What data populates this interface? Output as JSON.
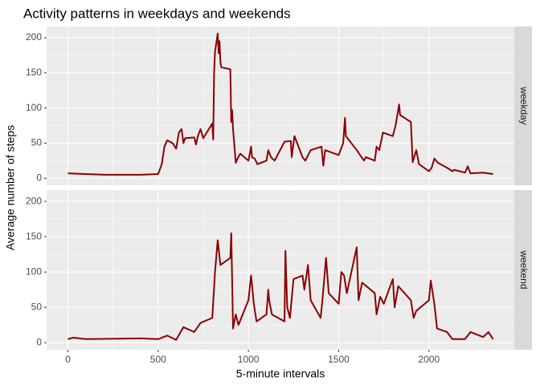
{
  "title": "Activity patterns in weekdays and weekends",
  "xlabel": "5-minute intervals",
  "ylabel": "Average number of steps",
  "chart_data": [
    {
      "type": "line",
      "name": "weekday",
      "color": "#8b0000",
      "x": [
        0,
        100,
        200,
        300,
        400,
        500,
        520,
        535,
        550,
        580,
        600,
        615,
        630,
        640,
        650,
        700,
        710,
        720,
        735,
        750,
        800,
        805,
        810,
        815,
        830,
        835,
        840,
        845,
        850,
        900,
        905,
        910,
        915,
        930,
        940,
        955,
        1000,
        1015,
        1020,
        1035,
        1050,
        1100,
        1110,
        1125,
        1145,
        1200,
        1235,
        1240,
        1255,
        1300,
        1315,
        1345,
        1405,
        1415,
        1425,
        1500,
        1525,
        1535,
        1540,
        1600,
        1640,
        1650,
        1700,
        1710,
        1725,
        1745,
        1800,
        1815,
        1835,
        1840,
        1900,
        1910,
        1930,
        1945,
        2000,
        2015,
        2030,
        2050,
        2100,
        2130,
        2140,
        2200,
        2215,
        2230,
        2300,
        2355
      ],
      "values": [
        7,
        6,
        5,
        5,
        5,
        6,
        20,
        45,
        54,
        50,
        42,
        65,
        70,
        50,
        57,
        58,
        48,
        60,
        70,
        57,
        78,
        55,
        150,
        180,
        206,
        178,
        195,
        165,
        158,
        155,
        80,
        97,
        70,
        22,
        28,
        35,
        25,
        45,
        30,
        28,
        20,
        25,
        40,
        30,
        25,
        52,
        53,
        30,
        60,
        30,
        25,
        40,
        45,
        18,
        40,
        33,
        50,
        86,
        60,
        40,
        25,
        30,
        25,
        45,
        40,
        65,
        60,
        75,
        105,
        90,
        80,
        23,
        40,
        20,
        10,
        15,
        28,
        22,
        15,
        10,
        12,
        8,
        17,
        7,
        8,
        6
      ],
      "xlim": [
        -117.75,
        2472.75
      ],
      "ylim": [
        -10,
        216
      ],
      "xticks": [
        0,
        500,
        1000,
        1500,
        2000
      ],
      "yticks": [
        0,
        50,
        100,
        150,
        200
      ],
      "grid": true
    },
    {
      "type": "line",
      "name": "weekend",
      "color": "#8b0000",
      "x": [
        0,
        30,
        100,
        400,
        500,
        550,
        600,
        640,
        700,
        735,
        800,
        815,
        830,
        845,
        900,
        905,
        915,
        930,
        945,
        1000,
        1015,
        1030,
        1045,
        1100,
        1110,
        1115,
        1130,
        1200,
        1205,
        1215,
        1230,
        1250,
        1300,
        1310,
        1330,
        1345,
        1400,
        1410,
        1430,
        1445,
        1500,
        1515,
        1530,
        1545,
        1600,
        1610,
        1630,
        1700,
        1710,
        1730,
        1750,
        1800,
        1810,
        1830,
        1900,
        1915,
        1930,
        2000,
        2010,
        2030,
        2045,
        2100,
        2130,
        2200,
        2230,
        2300,
        2330,
        2355
      ],
      "values": [
        5,
        7,
        5,
        6,
        5,
        10,
        4,
        22,
        15,
        28,
        35,
        100,
        145,
        110,
        120,
        155,
        20,
        40,
        25,
        60,
        95,
        55,
        30,
        40,
        75,
        60,
        40,
        30,
        130,
        50,
        35,
        90,
        95,
        75,
        110,
        60,
        35,
        60,
        120,
        70,
        55,
        100,
        95,
        70,
        135,
        60,
        85,
        70,
        40,
        65,
        55,
        90,
        50,
        80,
        60,
        35,
        45,
        60,
        88,
        55,
        20,
        15,
        5,
        5,
        15,
        8,
        15,
        5
      ],
      "xlim": [
        -117.75,
        2472.75
      ],
      "ylim": [
        -10,
        216
      ],
      "xticks": [
        0,
        500,
        1000,
        1500,
        2000
      ],
      "yticks": [
        0,
        50,
        100,
        150,
        200
      ],
      "grid": true
    }
  ]
}
